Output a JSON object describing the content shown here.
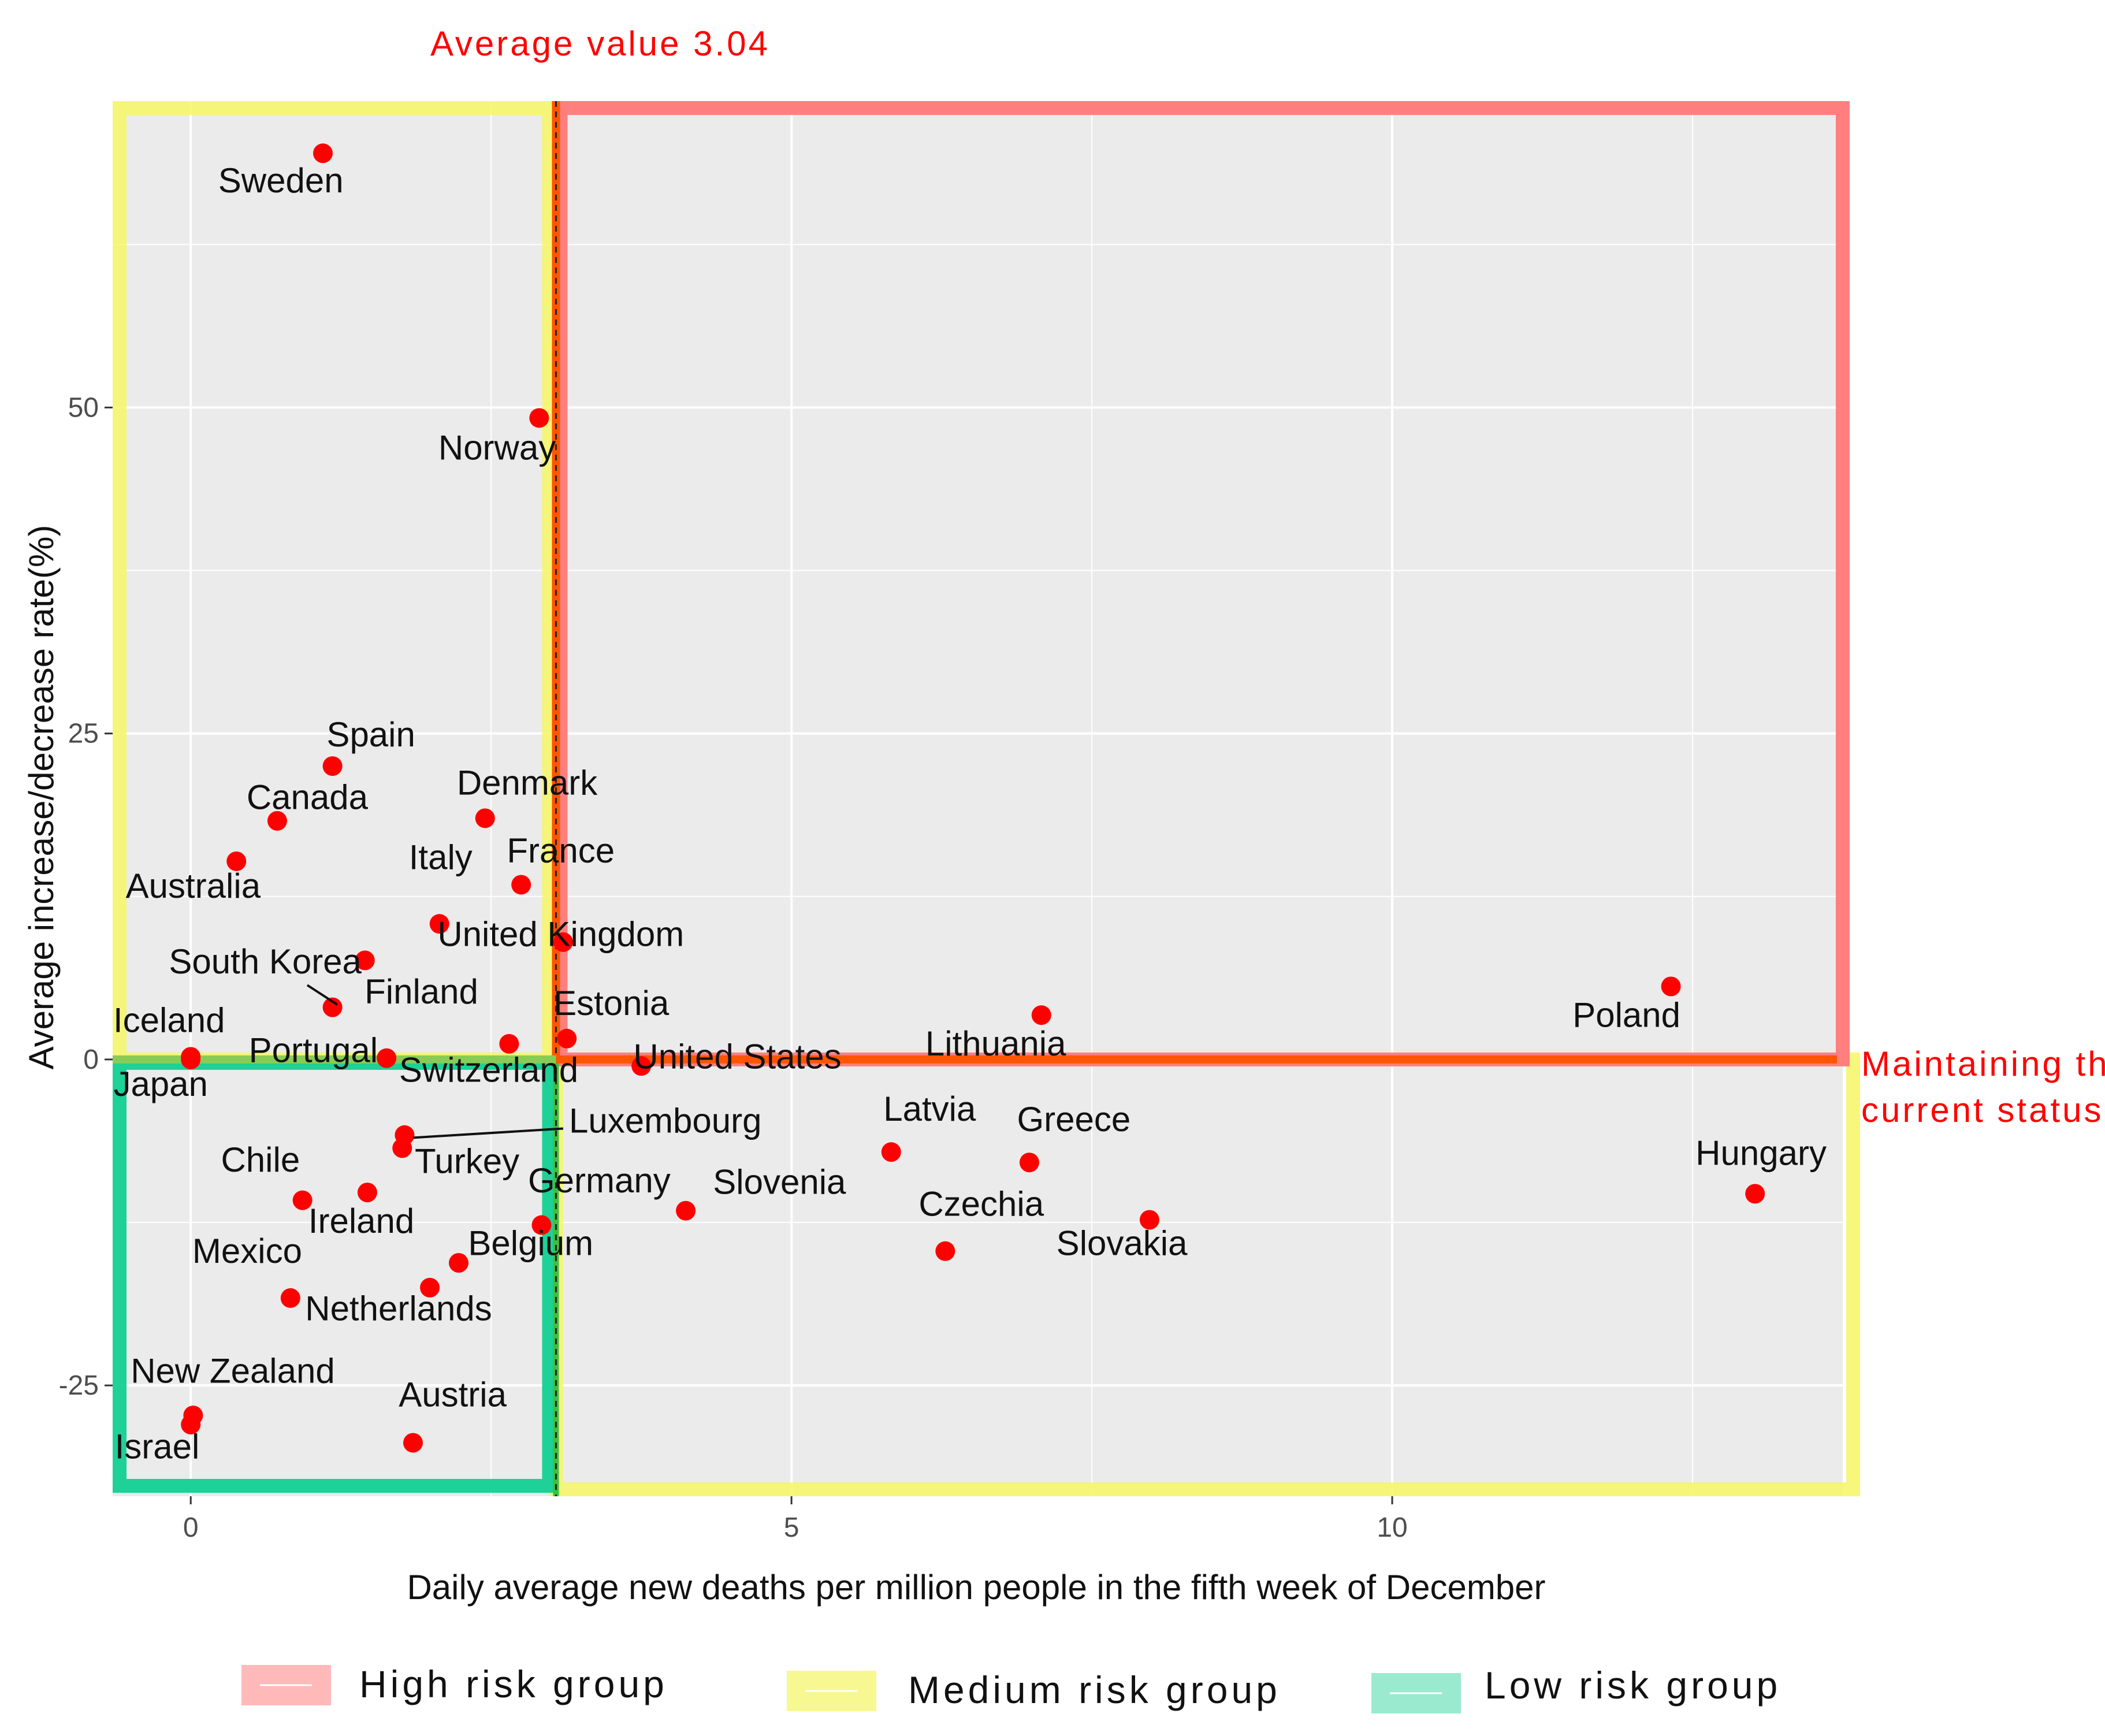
{
  "chart_data": {
    "type": "scatter",
    "xlabel": "Daily average new deaths per million people in the fifth week of December",
    "ylabel": "Average increase/decrease rate(%)",
    "xlim": [
      -0.65,
      13.75
    ],
    "ylim": [
      -33.5,
      73.5
    ],
    "x_ticks": [
      0,
      5,
      10
    ],
    "y_ticks": [
      -25,
      0,
      25,
      50
    ],
    "x_tick_labels": [
      "0",
      "5",
      "10"
    ],
    "y_tick_labels": [
      "-25",
      "0",
      "25",
      "50"
    ],
    "grid": true,
    "mean_x": 3.04,
    "annotations": {
      "average": "Average value 3.04",
      "status_line1": "Maintaining the",
      "status_line2": "current status"
    },
    "colors": {
      "point": "#ff0000",
      "high": "#ff7f7f",
      "medium": "#f6f66d",
      "low": "#1ed197",
      "line": "#ff5500",
      "panel": "#ebebeb",
      "grid": "#ffffff"
    },
    "points": [
      {
        "name": "Sweden",
        "x": 1.1,
        "y": 69.5
      },
      {
        "name": "Norway",
        "x": 2.9,
        "y": 49.2
      },
      {
        "name": "Spain",
        "x": 1.18,
        "y": 22.5
      },
      {
        "name": "Canada",
        "x": 0.72,
        "y": 18.3
      },
      {
        "name": "Denmark",
        "x": 2.45,
        "y": 18.5
      },
      {
        "name": "Australia",
        "x": 0.38,
        "y": 15.2
      },
      {
        "name": "France",
        "x": 2.75,
        "y": 13.4
      },
      {
        "name": "Italy",
        "x": 2.07,
        "y": 10.4
      },
      {
        "name": "United Kingdom",
        "x": 3.1,
        "y": 9.0
      },
      {
        "name": "South Korea",
        "x": 1.45,
        "y": 7.6
      },
      {
        "name": "Finland",
        "x": 1.18,
        "y": 4.0
      },
      {
        "name": "Estonia",
        "x": 2.65,
        "y": 1.2
      },
      {
        "name": "Estonia-2",
        "x": 3.13,
        "y": 1.6
      },
      {
        "name": "Iceland",
        "x": 0.0,
        "y": 0.2
      },
      {
        "name": "Portugal",
        "x": 1.63,
        "y": 0.1
      },
      {
        "name": "Japan",
        "x": 0.0,
        "y": 0.0
      },
      {
        "name": "United States",
        "x": 3.75,
        "y": -0.5
      },
      {
        "name": "Lithuania",
        "x": 7.08,
        "y": 3.4
      },
      {
        "name": "Poland",
        "x": 12.32,
        "y": 5.6
      },
      {
        "name": "Luxembourg",
        "x": 1.78,
        "y": -5.8
      },
      {
        "name": "Turkey",
        "x": 1.76,
        "y": -6.8
      },
      {
        "name": "Chile",
        "x": 0.93,
        "y": -10.8
      },
      {
        "name": "Ireland",
        "x": 1.47,
        "y": -10.2
      },
      {
        "name": "Germany",
        "x": 2.92,
        "y": -12.7
      },
      {
        "name": "Slovenia",
        "x": 4.12,
        "y": -11.6
      },
      {
        "name": "Latvia",
        "x": 5.83,
        "y": -7.1
      },
      {
        "name": "Greece",
        "x": 6.98,
        "y": -7.9
      },
      {
        "name": "Hungary",
        "x": 13.02,
        "y": -10.3
      },
      {
        "name": "Czechia",
        "x": 6.28,
        "y": -14.7
      },
      {
        "name": "Slovakia",
        "x": 7.98,
        "y": -12.3
      },
      {
        "name": "Belgium",
        "x": 2.23,
        "y": -15.6
      },
      {
        "name": "Netherlands",
        "x": 1.99,
        "y": -17.5
      },
      {
        "name": "Mexico",
        "x": 0.83,
        "y": -18.3
      },
      {
        "name": "New Zealand",
        "x": 0.02,
        "y": -27.3
      },
      {
        "name": "Israel",
        "x": 0.0,
        "y": -28.0
      },
      {
        "name": "Austria",
        "x": 1.85,
        "y": -29.4
      }
    ],
    "labels": [
      {
        "text": "Sweden",
        "x": 0.75,
        "y": 66.5
      },
      {
        "text": "Norway",
        "x": 2.55,
        "y": 46.0
      },
      {
        "text": "Spain",
        "x": 1.5,
        "y": 24.0
      },
      {
        "text": "Canada",
        "x": 0.97,
        "y": 19.2
      },
      {
        "text": "Denmark",
        "x": 2.8,
        "y": 20.3
      },
      {
        "text": "Australia",
        "x": 0.02,
        "y": 12.4
      },
      {
        "text": "France",
        "x": 3.08,
        "y": 15.1
      },
      {
        "text": "Italy",
        "x": 2.08,
        "y": 14.6
      },
      {
        "text": "United Kingdom",
        "x": 3.08,
        "y": 8.7
      },
      {
        "text": "South Korea",
        "x": 0.62,
        "y": 6.6
      },
      {
        "text": "Finland",
        "x": 1.92,
        "y": 4.3
      },
      {
        "text": "Estonia",
        "x": 3.5,
        "y": 3.4
      },
      {
        "text": "Iceland",
        "x": -0.18,
        "y": 2.1
      },
      {
        "text": "Portugal",
        "x": 1.02,
        "y": -0.2
      },
      {
        "text": "Switzerland",
        "x": 2.48,
        "y": -1.7
      },
      {
        "text": "Japan",
        "x": -0.25,
        "y": -2.8
      },
      {
        "text": "United States",
        "x": 4.55,
        "y": -0.7
      },
      {
        "text": "Lithuania",
        "x": 6.7,
        "y": 0.3
      },
      {
        "text": "Poland",
        "x": 11.95,
        "y": 2.5
      },
      {
        "text": "Luxembourg",
        "x": 3.95,
        "y": -5.6
      },
      {
        "text": "Turkey",
        "x": 2.3,
        "y": -8.7
      },
      {
        "text": "Chile",
        "x": 0.58,
        "y": -8.6
      },
      {
        "text": "Ireland",
        "x": 1.42,
        "y": -13.3
      },
      {
        "text": "Germany",
        "x": 3.4,
        "y": -10.2
      },
      {
        "text": "Slovenia",
        "x": 4.9,
        "y": -10.3
      },
      {
        "text": "Latvia",
        "x": 6.15,
        "y": -4.7
      },
      {
        "text": "Greece",
        "x": 7.35,
        "y": -5.5
      },
      {
        "text": "Hungary",
        "x": 13.07,
        "y": -8.1
      },
      {
        "text": "Czechia",
        "x": 6.58,
        "y": -12.0
      },
      {
        "text": "Slovakia",
        "x": 7.75,
        "y": -15.0
      },
      {
        "text": "Belgium",
        "x": 2.83,
        "y": -15.0
      },
      {
        "text": "Netherlands",
        "x": 1.73,
        "y": -20.0
      },
      {
        "text": "Mexico",
        "x": 0.47,
        "y": -15.6
      },
      {
        "text": "New Zealand",
        "x": 0.35,
        "y": -24.8
      },
      {
        "text": "Israel",
        "x": -0.28,
        "y": -30.6
      },
      {
        "text": "Austria",
        "x": 2.18,
        "y": -26.6
      }
    ],
    "leader_lines": [
      {
        "x1": 1.22,
        "y1": 4.2,
        "x2": 0.97,
        "y2": 5.7
      },
      {
        "x1": 1.85,
        "y1": -6.0,
        "x2": 3.1,
        "y2": -5.3
      }
    ],
    "legend": [
      {
        "label": "High risk group",
        "color": "#ff7f7f"
      },
      {
        "label": "Medium risk group",
        "color": "#f6f66d"
      },
      {
        "label": "Low risk group",
        "color": "#1ed197"
      }
    ],
    "legend_placement": "bottom"
  }
}
